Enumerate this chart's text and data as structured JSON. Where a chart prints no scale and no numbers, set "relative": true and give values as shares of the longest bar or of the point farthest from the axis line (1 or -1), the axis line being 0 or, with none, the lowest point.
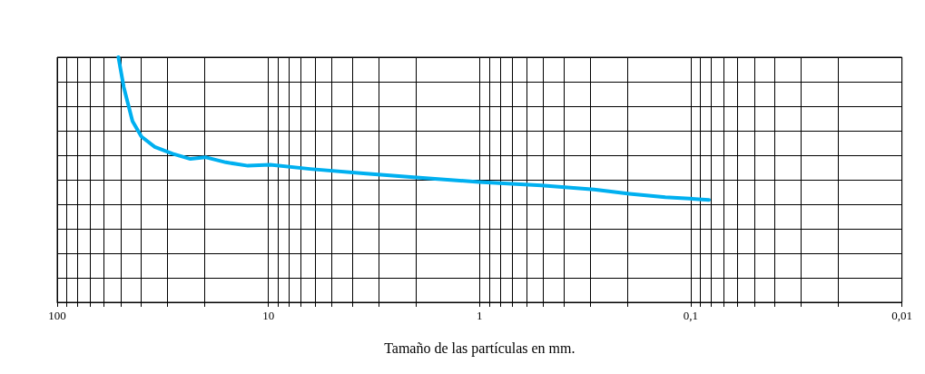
{
  "chart_data": {
    "type": "line",
    "xlabel": "Tamaño de las partículas en mm.",
    "relative": true,
    "log": "x",
    "xlim": [
      100,
      0.01
    ],
    "xticks": [
      100,
      10,
      1,
      {
        "value": 0.1,
        "label": "0,1"
      },
      {
        "value": 0.01,
        "label": "0,01"
      }
    ],
    "grid": true,
    "marker": "none",
    "line_style": "solid",
    "series": [
      {
        "color": "#00b0f0",
        "x": [
          51.3,
          48.4,
          44,
          39.9,
          34.5,
          28.4,
          23.4,
          19.9,
          15.9,
          12.5,
          9.8,
          6.35,
          3.55,
          1.99,
          1.01,
          0.51,
          0.287,
          0.195,
          0.132,
          0.082
        ],
        "values": [
          1,
          0.878,
          0.739,
          0.676,
          0.634,
          0.606,
          0.585,
          0.592,
          0.571,
          0.557,
          0.561,
          0.544,
          0.526,
          0.509,
          0.491,
          0.477,
          0.46,
          0.443,
          0.429,
          0.418
        ]
      }
    ]
  }
}
